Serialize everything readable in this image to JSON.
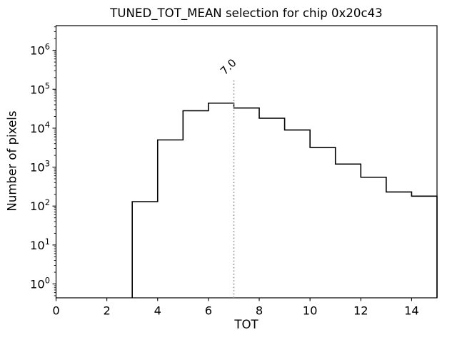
{
  "chart_data": {
    "type": "bar",
    "histtype": "step",
    "yscale": "log",
    "grid": false,
    "legend": null,
    "title": "TUNED_TOT_MEAN selection for chip 0x20c43",
    "xlabel": "TOT",
    "ylabel": "Number of pixels",
    "bin_edges": [
      3,
      4,
      5,
      6,
      7,
      8,
      9,
      10,
      11,
      12,
      13,
      14,
      15
    ],
    "counts": [
      130,
      5000,
      28000,
      44000,
      33000,
      18000,
      9000,
      3200,
      1200,
      550,
      230,
      180
    ],
    "xlim": [
      0,
      15
    ],
    "ylim": [
      0.44,
      4300000
    ],
    "x_ticks": [
      0,
      2,
      4,
      6,
      8,
      10,
      12,
      14
    ],
    "y_tick_exponents": [
      0,
      1,
      2,
      3,
      4,
      5,
      6
    ],
    "line_color": "#000000",
    "background_color": "#ffffff",
    "selection_line": {
      "x": 7.0,
      "label": "7.0",
      "color": "#999999",
      "linestyle": "dotted",
      "ymax_fraction": 0.8
    }
  }
}
